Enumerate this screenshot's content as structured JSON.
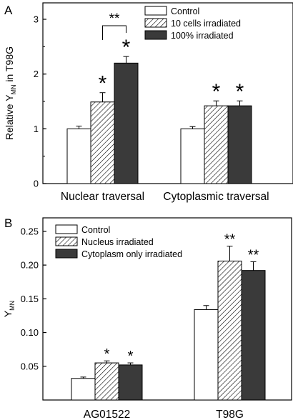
{
  "chart_data": [
    {
      "type": "bar",
      "panel_label": "A",
      "categories": [
        "Nuclear traversal",
        "Cytoplasmic traversal"
      ],
      "series": [
        {
          "name": "Control",
          "values": [
            1.0,
            1.0
          ],
          "errors": [
            0.05,
            0.04
          ],
          "fill": "white",
          "significance": [
            "",
            ""
          ]
        },
        {
          "name": "10 cells irradiated",
          "values": [
            1.49,
            1.42
          ],
          "errors": [
            0.17,
            0.09
          ],
          "fill": "hatch",
          "significance": [
            "*",
            "*"
          ]
        },
        {
          "name": "100% irradiated",
          "values": [
            2.2,
            1.42
          ],
          "errors": [
            0.12,
            0.09
          ],
          "fill": "#3a3a3a",
          "significance": [
            "*",
            "*"
          ]
        }
      ],
      "bracket": {
        "category": 0,
        "from_series": 1,
        "to_series": 2,
        "label": "**"
      },
      "ylabel_main": "Relative Y",
      "ylabel_sub": "MN",
      "ylabel_suffix": " in T98G",
      "yticks": [
        0,
        1,
        2,
        3
      ],
      "yticks_labels": [
        "0",
        "1",
        "2",
        "3"
      ],
      "ylim": [
        0,
        3.3
      ],
      "legend_position": "top-right",
      "grid": false
    },
    {
      "type": "bar",
      "panel_label": "B",
      "categories": [
        "AG01522",
        "T98G"
      ],
      "series": [
        {
          "name": "Control",
          "values": [
            0.032,
            0.134
          ],
          "errors": [
            0.002,
            0.006
          ],
          "fill": "white",
          "significance": [
            "",
            ""
          ]
        },
        {
          "name": "Nucleus irradiated",
          "values": [
            0.055,
            0.206
          ],
          "errors": [
            0.003,
            0.022
          ],
          "fill": "hatch",
          "significance": [
            "*",
            "**"
          ]
        },
        {
          "name": "Cytoplasm only irradiated",
          "values": [
            0.052,
            0.192
          ],
          "errors": [
            0.003,
            0.013
          ],
          "fill": "#3a3a3a",
          "significance": [
            "*",
            "**"
          ]
        }
      ],
      "ylabel_main": "Y",
      "ylabel_sub": "MN",
      "ylabel_suffix": "",
      "yticks": [
        0.05,
        0.1,
        0.15,
        0.2,
        0.25
      ],
      "yticks_labels": [
        "0.05",
        "0.10",
        "0.15",
        "0.20",
        "0.25"
      ],
      "ylim": [
        0,
        0.27
      ],
      "legend_position": "top-left",
      "grid": false
    }
  ]
}
